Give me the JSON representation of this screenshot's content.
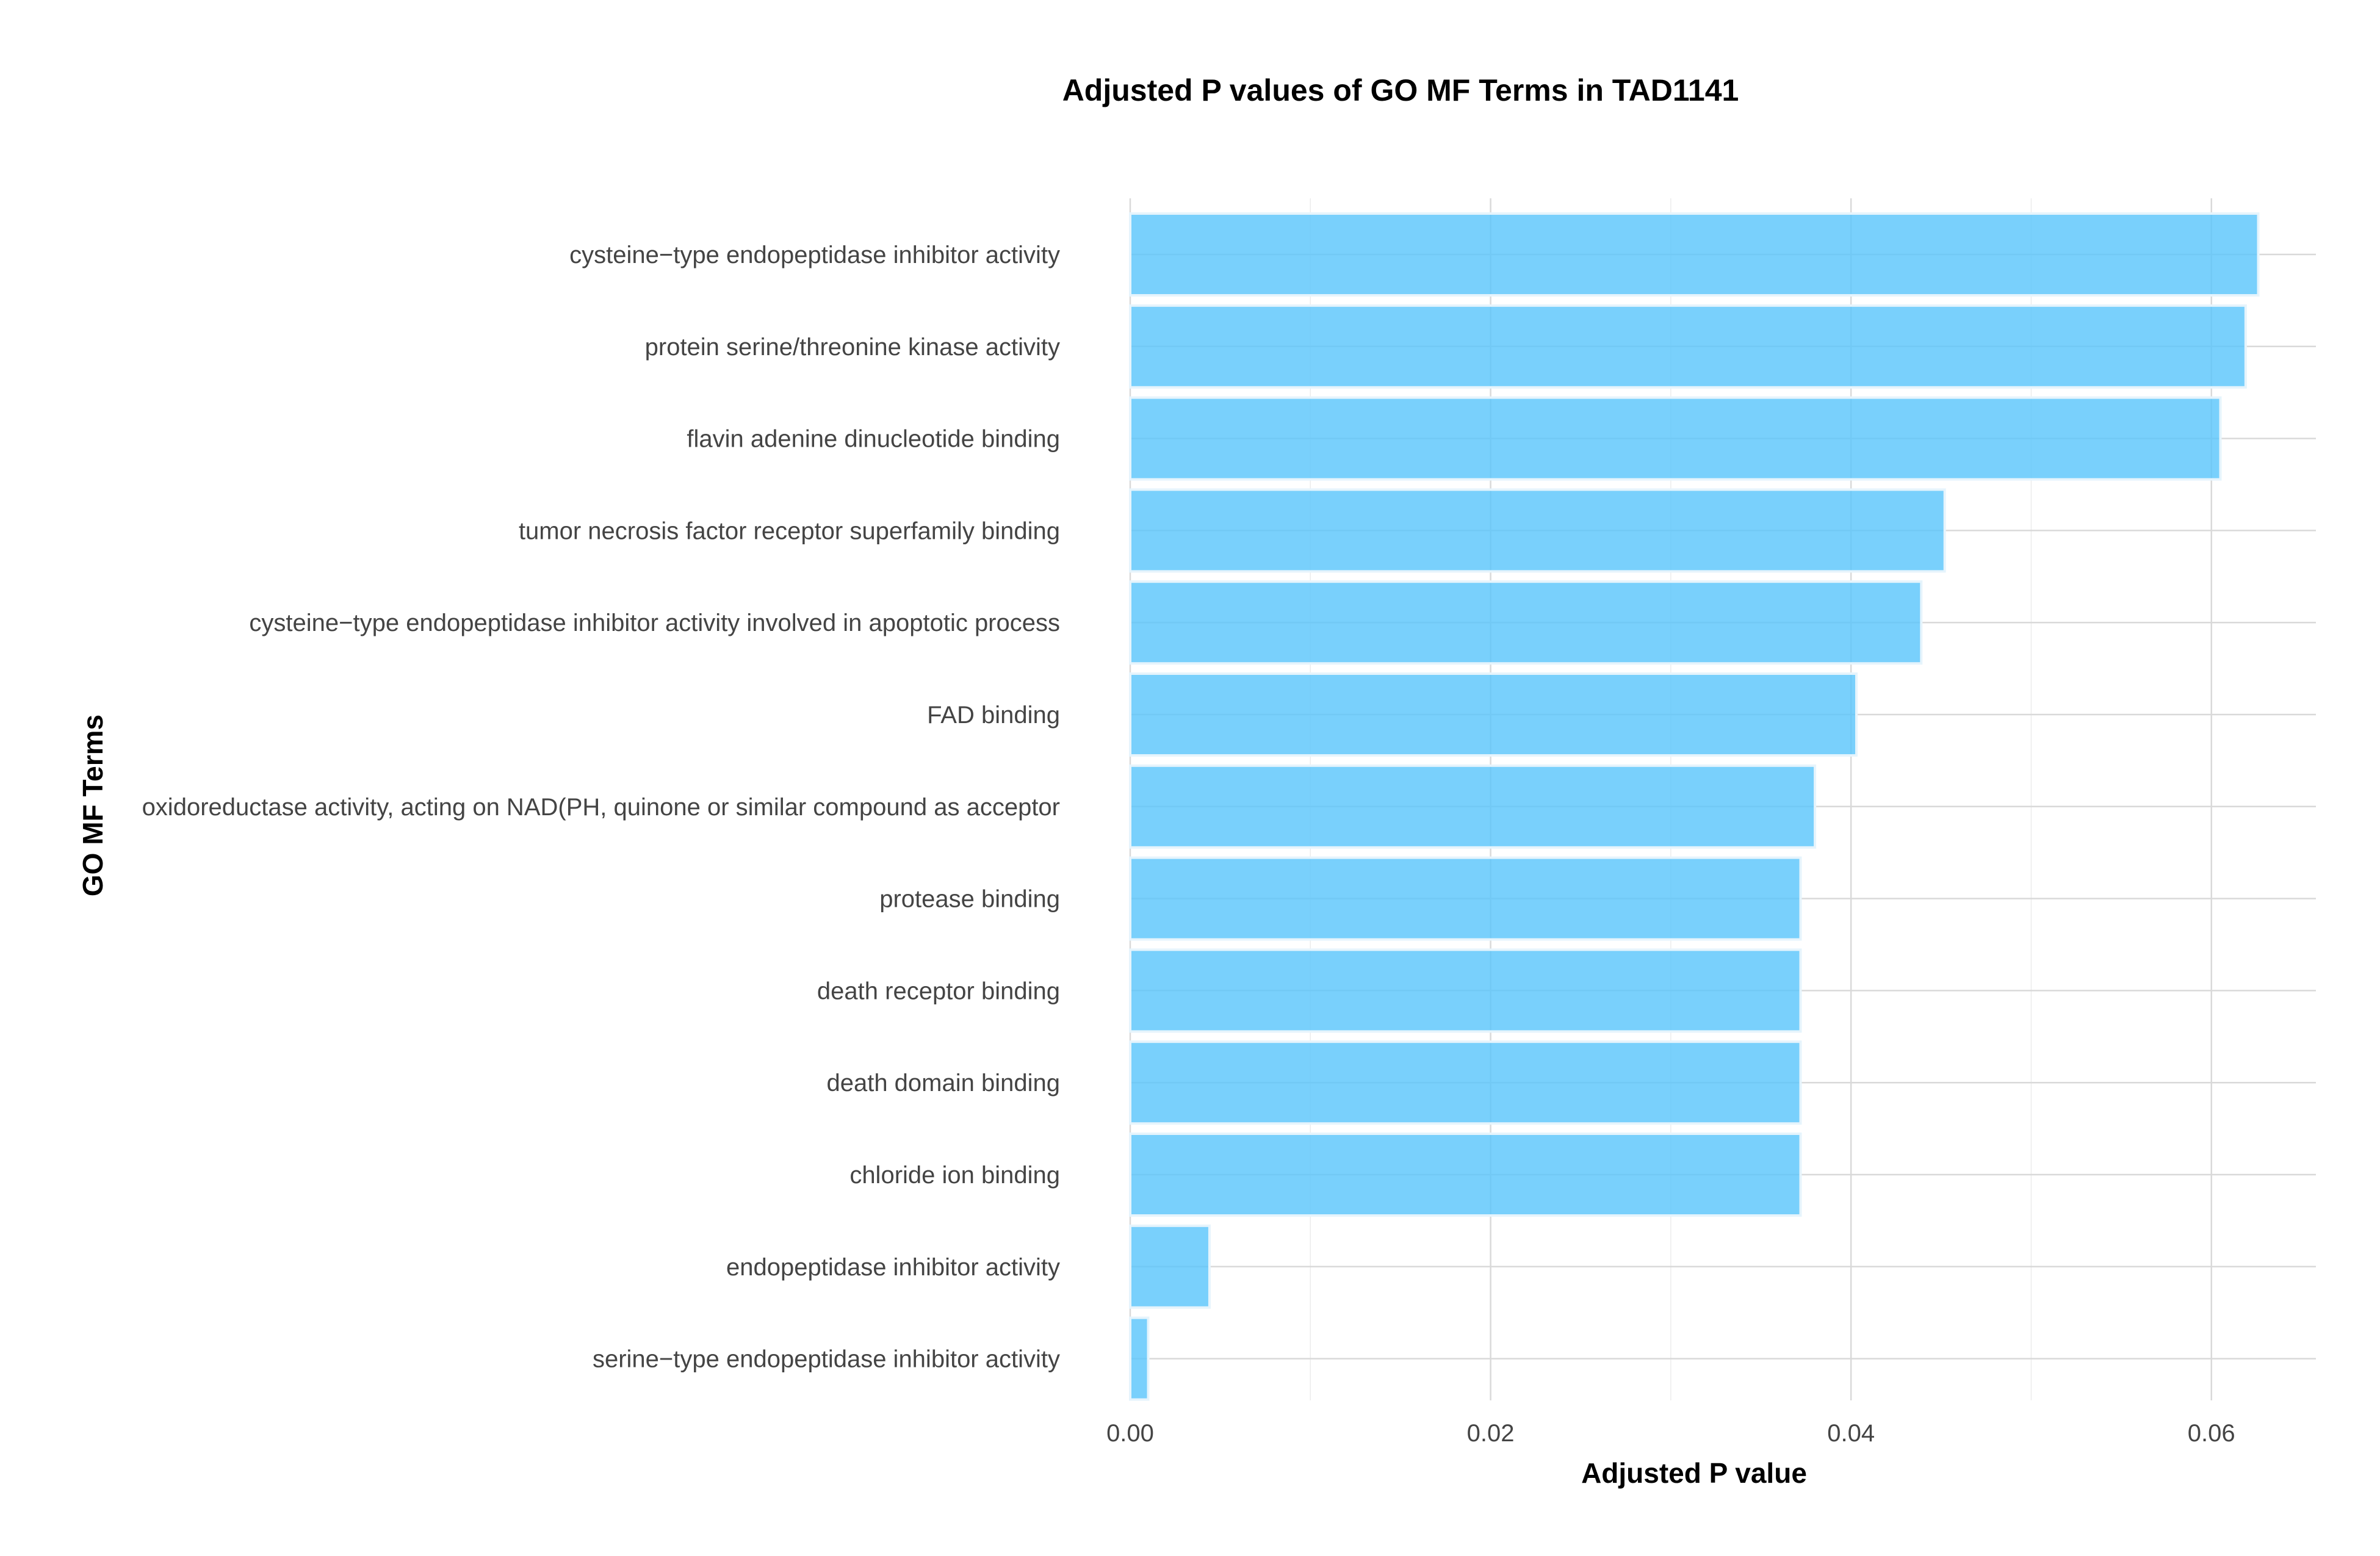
{
  "chart_data": {
    "type": "bar",
    "orientation": "horizontal",
    "title": "Adjusted P values of GO MF Terms in TAD1141",
    "xlabel": "Adjusted P value",
    "ylabel": "GO MF Terms",
    "xlim": [
      0,
      0.0658
    ],
    "xticks": [
      0.0,
      0.02,
      0.04,
      0.06
    ],
    "xtick_labels": [
      "0.00",
      "0.02",
      "0.04",
      "0.06"
    ],
    "grid": true,
    "bar_color": "#5BC6FB",
    "categories": [
      "cysteine−type endopeptidase inhibitor activity",
      "protein serine/threonine kinase activity",
      "flavin adenine dinucleotide binding",
      "tumor necrosis factor receptor superfamily binding",
      "cysteine−type endopeptidase inhibitor activity involved in apoptotic process",
      "FAD binding",
      "oxidoreductase activity, acting on NAD(PH, quinone or similar compound as acceptor",
      "protease binding",
      "death receptor binding",
      "death domain binding",
      "chloride ion binding",
      "endopeptidase inhibitor activity",
      "serine−type endopeptidase inhibitor activity"
    ],
    "values": [
      0.0626,
      0.0619,
      0.0605,
      0.0452,
      0.0439,
      0.0403,
      0.038,
      0.0372,
      0.0372,
      0.0372,
      0.0372,
      0.0044,
      0.001
    ]
  }
}
